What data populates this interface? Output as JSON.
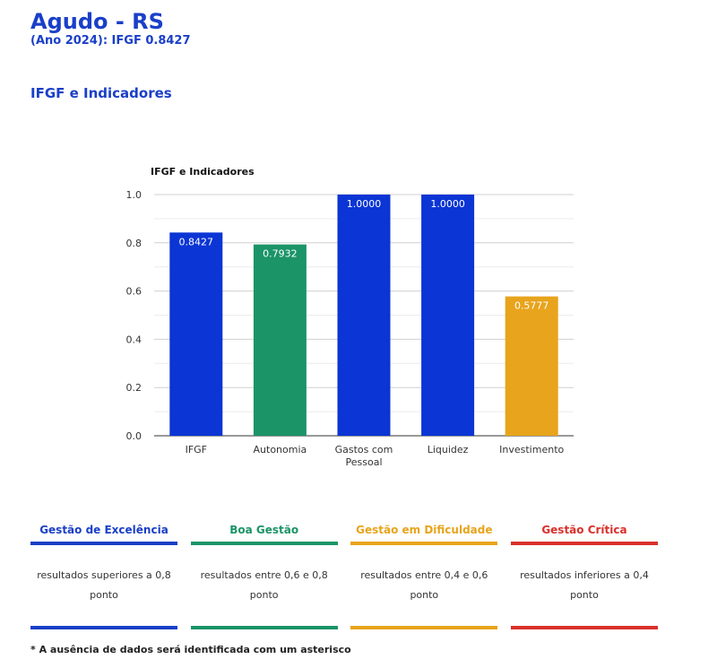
{
  "header": {
    "city": "Agudo - RS",
    "subtitle": "(Ano 2024): IFGF 0.8427",
    "section_title": "IFGF e Indicadores"
  },
  "chart_data": {
    "type": "bar",
    "title": "IFGF e Indicadores",
    "categories": [
      "IFGF",
      "Autonomia",
      "Gastos com Pessoal",
      "Liquidez",
      "Investimento"
    ],
    "category_lines": [
      [
        "IFGF"
      ],
      [
        "Autonomia"
      ],
      [
        "Gastos com",
        "Pessoal"
      ],
      [
        "Liquidez"
      ],
      [
        "Investimento"
      ]
    ],
    "values": [
      0.8427,
      0.7932,
      1.0,
      1.0,
      0.5777
    ],
    "data_labels": [
      "0.8427",
      "0.7932",
      "1.0000",
      "1.0000",
      "0.5777"
    ],
    "colors": [
      "#0b35d4",
      "#1b9467",
      "#0b35d4",
      "#0b35d4",
      "#e8a41c"
    ],
    "ylim": [
      0,
      1
    ],
    "yticks": [
      "0.0",
      "0.2",
      "0.4",
      "0.6",
      "0.8",
      "1.0"
    ],
    "grid": true,
    "xlabel": "",
    "ylabel": ""
  },
  "legend": [
    {
      "title": "Gestão de Excelência",
      "color": "#1a3fc8",
      "desc": "resultados superiores a 0,8 ponto"
    },
    {
      "title": "Boa Gestão",
      "color": "#1b9467",
      "desc": "resultados entre 0,6 e 0,8 ponto"
    },
    {
      "title": "Gestão em Dificuldade",
      "color": "#e8a41c",
      "desc": "resultados entre 0,4 e 0,6 ponto"
    },
    {
      "title": "Gestão Crítica",
      "color": "#d9312b",
      "desc": "resultados inferiores a 0,4 ponto"
    }
  ],
  "footnote": "* A ausência de dados será identificada com um asterisco"
}
